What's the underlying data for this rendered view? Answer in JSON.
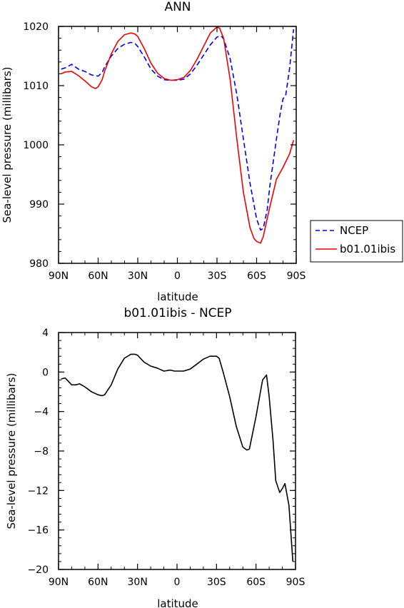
{
  "chart_data": [
    {
      "type": "line",
      "title": "ANN",
      "xlabel": "latitude",
      "ylabel": "Sea-level pressure (millibars)",
      "x_ticks": [
        "90N",
        "60N",
        "30N",
        "0",
        "30S",
        "60S",
        "90S"
      ],
      "y_ticks": [
        "980",
        "990",
        "1000",
        "1010",
        "1020"
      ],
      "xlim": [
        90,
        -90
      ],
      "ylim": [
        980,
        1020
      ],
      "legend": {
        "placement": "right",
        "entries": [
          "NCEP",
          "b01.01ibis"
        ]
      },
      "series": [
        {
          "name": "NCEP",
          "color": "#0000ee",
          "dash": true,
          "x": [
            88,
            85,
            80,
            75,
            70,
            65,
            60,
            57,
            55,
            50,
            45,
            40,
            35,
            32,
            30,
            25,
            20,
            15,
            10,
            5,
            0,
            -5,
            -10,
            -15,
            -20,
            -25,
            -30,
            -33,
            -35,
            -40,
            -45,
            -50,
            -55,
            -60,
            -63,
            -65,
            -68,
            -70,
            -75,
            -78,
            -80,
            -82,
            -85,
            -88
          ],
          "y": [
            1012.8,
            1013.0,
            1013.6,
            1012.8,
            1012.4,
            1011.8,
            1011.6,
            1012.2,
            1013.2,
            1015.0,
            1016.3,
            1017.0,
            1017.3,
            1017.1,
            1016.6,
            1014.8,
            1012.8,
            1011.6,
            1011.0,
            1010.9,
            1010.9,
            1011.1,
            1012.0,
            1013.5,
            1015.2,
            1016.9,
            1018.2,
            1018.4,
            1017.9,
            1014.5,
            1008.5,
            1001.0,
            993.5,
            987.5,
            985.6,
            985.9,
            989.0,
            993.0,
            1001.0,
            1005.5,
            1007.8,
            1008.3,
            1013.0,
            1019.5
          ]
        },
        {
          "name": "b01.01ibis",
          "color": "#ee0000",
          "dash": false,
          "x": [
            88,
            85,
            80,
            75,
            70,
            65,
            62,
            60,
            57,
            55,
            50,
            45,
            40,
            35,
            32,
            30,
            25,
            20,
            15,
            10,
            5,
            0,
            -5,
            -10,
            -15,
            -20,
            -25,
            -30,
            -32,
            -35,
            -40,
            -45,
            -50,
            -55,
            -58,
            -60,
            -63,
            -65,
            -70,
            -75,
            -80,
            -85,
            -88
          ],
          "y": [
            1012.0,
            1012.3,
            1012.4,
            1011.7,
            1010.8,
            1009.8,
            1009.5,
            1009.8,
            1011.0,
            1012.5,
            1015.4,
            1017.5,
            1018.6,
            1018.9,
            1018.7,
            1018.3,
            1016.2,
            1013.8,
            1012.1,
            1011.2,
            1010.9,
            1011.0,
            1011.4,
            1012.6,
            1014.5,
            1016.7,
            1018.9,
            1019.9,
            1019.7,
            1018.0,
            1011.0,
            1001.0,
            992.0,
            986.0,
            984.2,
            983.7,
            983.4,
            984.5,
            989.5,
            994.2,
            996.2,
            998.5,
            1000.8
          ]
        }
      ]
    },
    {
      "type": "line",
      "title": "b01.01ibis - NCEP",
      "xlabel": "latitude",
      "ylabel": "Sea-level pressure (millibars)",
      "x_ticks": [
        "90N",
        "60N",
        "30N",
        "0",
        "30S",
        "60S",
        "90S"
      ],
      "y_ticks": [
        "-20",
        "-16",
        "-12",
        "-8",
        "-4",
        "0",
        "4"
      ],
      "xlim": [
        90,
        -90
      ],
      "ylim": [
        -20,
        4
      ],
      "series": [
        {
          "color": "#000000",
          "dash": false,
          "x": [
            88,
            85,
            80,
            77,
            74,
            70,
            65,
            60,
            57,
            55,
            50,
            45,
            40,
            35,
            32,
            30,
            25,
            20,
            15,
            10,
            5,
            2,
            0,
            -5,
            -10,
            -15,
            -20,
            -25,
            -28,
            -30,
            -32,
            -35,
            -40,
            -45,
            -50,
            -53,
            -55,
            -60,
            -65,
            -68,
            -70,
            -73,
            -75,
            -78,
            -80,
            -82,
            -85,
            -88
          ],
          "y": [
            -0.7,
            -0.6,
            -1.3,
            -1.3,
            -1.2,
            -1.5,
            -2.0,
            -2.3,
            -2.4,
            -2.3,
            -1.3,
            0.3,
            1.4,
            1.8,
            1.8,
            1.7,
            1.0,
            0.6,
            0.4,
            0.1,
            0.2,
            0.1,
            0.1,
            0.1,
            0.3,
            0.8,
            1.3,
            1.6,
            1.6,
            1.6,
            1.4,
            0.0,
            -2.5,
            -5.5,
            -7.6,
            -7.9,
            -7.8,
            -4.5,
            -0.8,
            -0.3,
            -2.5,
            -7.0,
            -11.0,
            -12.2,
            -11.8,
            -11.3,
            -13.5,
            -19.2
          ]
        }
      ]
    }
  ]
}
